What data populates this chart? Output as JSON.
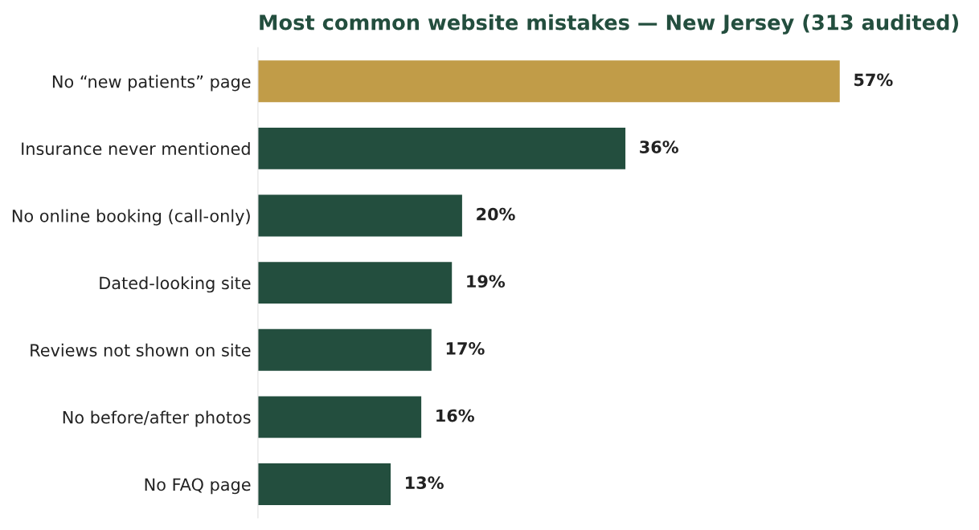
{
  "chart_data": {
    "type": "bar",
    "orientation": "horizontal",
    "title": "Most common website mistakes — New Jersey (313 audited)",
    "categories": [
      "No “new patients” page",
      "Insurance never mentioned",
      "No online booking (call-only)",
      "Dated-looking site",
      "Reviews not shown on site",
      "No before/after photos",
      "No FAQ page"
    ],
    "values": [
      57,
      36,
      20,
      19,
      17,
      16,
      13
    ],
    "colors": [
      "#c19c48",
      "#234e3e",
      "#234e3e",
      "#234e3e",
      "#234e3e",
      "#234e3e",
      "#234e3e"
    ],
    "value_labels": [
      "57%",
      "36%",
      "20%",
      "19%",
      "17%",
      "16%",
      "13%"
    ],
    "grid": false,
    "legend": false
  }
}
